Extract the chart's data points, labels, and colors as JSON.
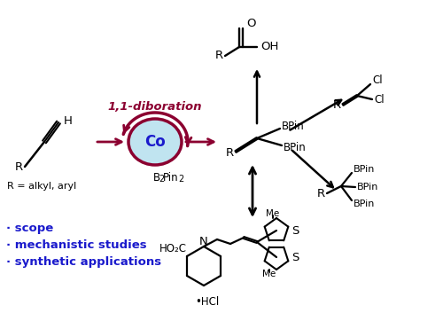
{
  "bg": "#ffffff",
  "black": "#000000",
  "blue": "#1a1acc",
  "maroon": "#8B0030",
  "co_fill": "#c0e4f0",
  "figsize": [
    5.0,
    3.53
  ],
  "dpi": 100,
  "bullet_items": [
    "· scope",
    "· mechanistic studies",
    "· synthetic applications"
  ]
}
